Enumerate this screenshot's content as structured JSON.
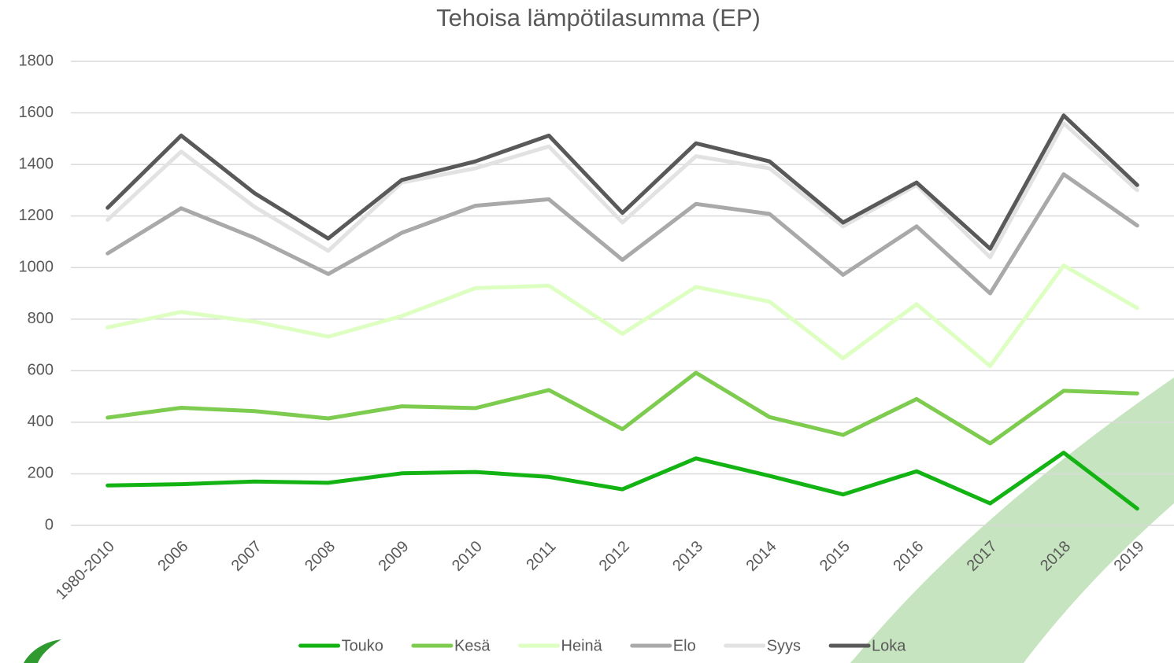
{
  "chart_data": {
    "type": "line",
    "title": "Tehoisa lämpötilasumma (EP)",
    "categories": [
      "1980-2010",
      "2006",
      "2007",
      "2008",
      "2009",
      "2010",
      "2011",
      "2012",
      "2013",
      "2014",
      "2015",
      "2016",
      "2017",
      "2018",
      "2019"
    ],
    "series": [
      {
        "name": "Touko",
        "color": "#12b312",
        "values": [
          155,
          160,
          170,
          165,
          202,
          207,
          188,
          140,
          260,
          192,
          120,
          210,
          85,
          282,
          65
        ]
      },
      {
        "name": "Kesä",
        "color": "#7dcc4f",
        "values": [
          418,
          456,
          443,
          415,
          462,
          455,
          525,
          373,
          592,
          420,
          351,
          490,
          318,
          522,
          512
        ]
      },
      {
        "name": "Heinä",
        "color": "#ddffc2",
        "values": [
          768,
          828,
          790,
          732,
          812,
          920,
          930,
          743,
          925,
          868,
          648,
          858,
          618,
          1008,
          843
        ]
      },
      {
        "name": "Elo",
        "color": "#a9a9a9",
        "values": [
          1055,
          1230,
          1115,
          975,
          1135,
          1240,
          1265,
          1030,
          1247,
          1208,
          972,
          1160,
          900,
          1362,
          1163
        ]
      },
      {
        "name": "Syys",
        "color": "#e2e2e2",
        "values": [
          1185,
          1450,
          1235,
          1065,
          1330,
          1385,
          1470,
          1175,
          1432,
          1385,
          1160,
          1320,
          1040,
          1560,
          1300
        ]
      },
      {
        "name": "Loka",
        "color": "#595959",
        "values": [
          1232,
          1512,
          1288,
          1113,
          1340,
          1412,
          1512,
          1212,
          1482,
          1412,
          1175,
          1330,
          1073,
          1590,
          1320
        ]
      }
    ],
    "ylim": [
      0,
      1800
    ],
    "yticks": [
      0,
      200,
      400,
      600,
      800,
      1000,
      1200,
      1400,
      1600,
      1800
    ],
    "grid": true
  }
}
